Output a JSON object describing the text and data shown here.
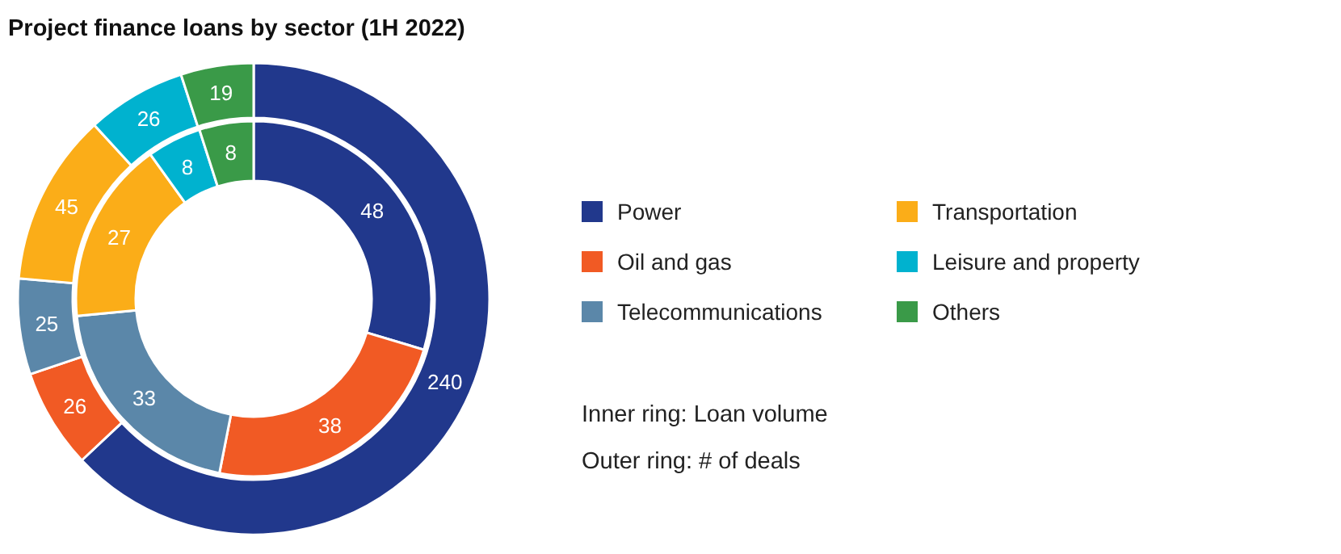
{
  "chart_data": {
    "type": "donut",
    "title": "Project finance loans by sector (1H 2022)",
    "categories": [
      "Power",
      "Oil and gas",
      "Telecommunications",
      "Transportation",
      "Leisure and property",
      "Others"
    ],
    "colors": [
      "#21388c",
      "#f15a24",
      "#5b87a9",
      "#fbad18",
      "#00b2cf",
      "#3a9a48"
    ],
    "series": [
      {
        "values": [
          48,
          38,
          33,
          27,
          8,
          8
        ]
      },
      {
        "values": [
          240,
          26,
          25,
          45,
          26,
          19
        ]
      }
    ],
    "data_labels": true,
    "legend": "right",
    "annotations": [
      "Inner ring: Loan volume",
      "Outer ring: # of deals"
    ]
  }
}
